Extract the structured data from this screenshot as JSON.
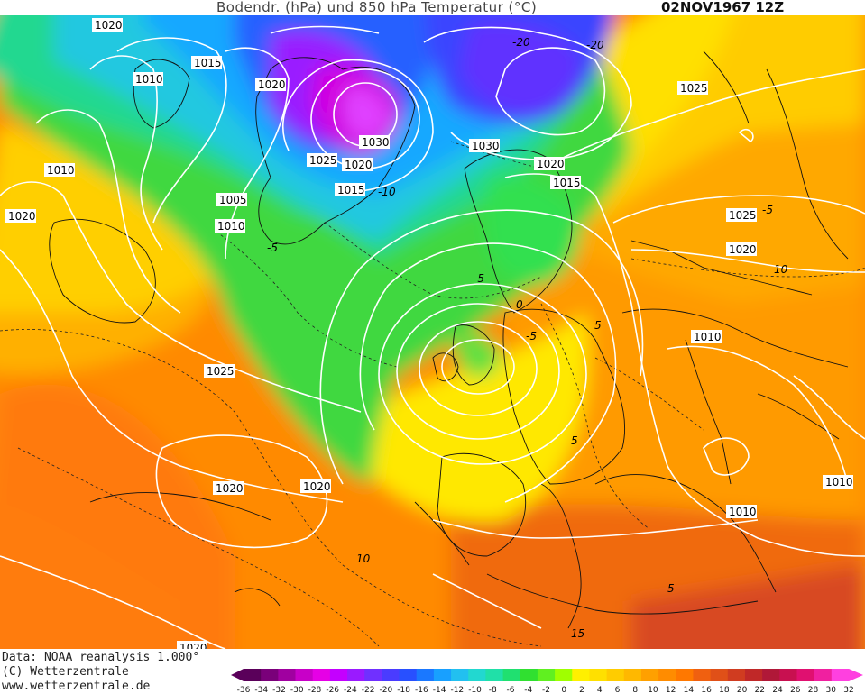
{
  "header": {
    "title": "Bodendr. (hPa) und 850 hPa Temperatur (°C)",
    "date": "02NOV1967 12Z"
  },
  "footer": {
    "data_source": "Data: NOAA reanalysis 1.000°",
    "copyright": "(C) Wetterzentrale",
    "website": "www.wetterzentrale.de"
  },
  "legend": {
    "ticks": [
      "-36",
      "-34",
      "-32",
      "-30",
      "-28",
      "-26",
      "-24",
      "-22",
      "-20",
      "-18",
      "-16",
      "-14",
      "-12",
      "-10",
      "-8",
      "-6",
      "-4",
      "-2",
      "0",
      "2",
      "4",
      "6",
      "8",
      "10",
      "12",
      "14",
      "16",
      "18",
      "20",
      "22",
      "24",
      "26",
      "28",
      "30",
      "32"
    ],
    "colors": [
      "#5a005a",
      "#7a007a",
      "#a000a0",
      "#c800c8",
      "#e600e6",
      "#c400ff",
      "#9a1aff",
      "#7030ff",
      "#4a3cff",
      "#2850ff",
      "#1a78ff",
      "#18a0ff",
      "#22c0f0",
      "#22d8d0",
      "#20e0a8",
      "#20e070",
      "#30e030",
      "#60f020",
      "#a0ff00",
      "#fff000",
      "#ffe000",
      "#ffcc00",
      "#ffb800",
      "#ffa000",
      "#ff8c00",
      "#ff7800",
      "#f06010",
      "#e05018",
      "#d03c20",
      "#c02828",
      "#b01838",
      "#c81050",
      "#e01070",
      "#f020a0",
      "#ff40e0"
    ]
  },
  "map": {
    "pressure_labels": [
      "1020",
      "1015",
      "1010",
      "1020",
      "1010",
      "1025",
      "1020",
      "1015",
      "1005",
      "1010",
      "1020",
      "1030",
      "1030",
      "1020",
      "1015",
      "1025",
      "1025",
      "1020",
      "1010",
      "1025",
      "1020",
      "1020",
      "1010",
      "1010",
      "1020"
    ],
    "temperature_labels": [
      "-20",
      "-20",
      "-10",
      "-5",
      "-5",
      "0",
      "5",
      "-5",
      "5",
      "10",
      "10",
      "15",
      "-5",
      "5"
    ]
  }
}
